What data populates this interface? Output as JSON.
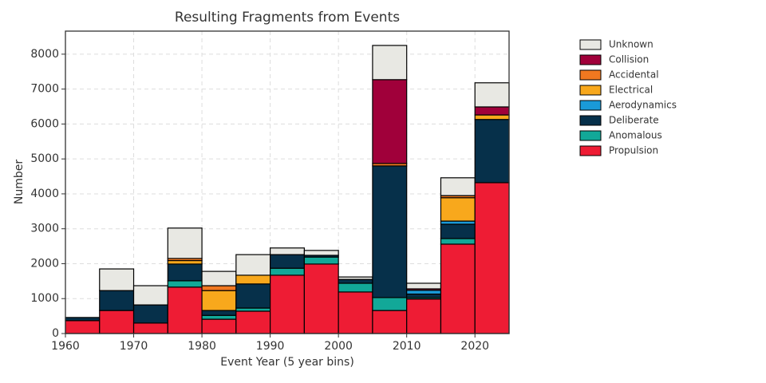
{
  "chart_data": {
    "type": "histogram",
    "title": "Resulting Fragments from Events",
    "xlabel": "Event Year (5 year bins)",
    "ylabel": "Number",
    "bins": [
      1960,
      1965,
      1970,
      1975,
      1980,
      1985,
      1990,
      1995,
      2000,
      2005,
      2010,
      2015,
      2020,
      2025
    ],
    "stacked": true,
    "series": [
      {
        "name": "Propulsion",
        "color": "#ee1c34",
        "values": [
          370,
          660,
          300,
          1330,
          410,
          640,
          1670,
          1990,
          1190,
          660,
          990,
          2560,
          4320
        ]
      },
      {
        "name": "Anomalous",
        "color": "#12a898",
        "values": [
          0,
          0,
          0,
          180,
          110,
          90,
          200,
          200,
          250,
          370,
          40,
          160,
          0
        ]
      },
      {
        "name": "Deliberate",
        "color": "#06304a",
        "values": [
          90,
          570,
          520,
          480,
          140,
          690,
          390,
          50,
          110,
          3770,
          100,
          410,
          1810
        ]
      },
      {
        "name": "Aerodynamics",
        "color": "#1a9ad8",
        "values": [
          0,
          0,
          0,
          0,
          0,
          0,
          0,
          0,
          0,
          0,
          110,
          90,
          0
        ]
      },
      {
        "name": "Electrical",
        "color": "#f8a81c",
        "values": [
          0,
          0,
          0,
          100,
          570,
          250,
          0,
          0,
          0,
          0,
          0,
          670,
          130
        ]
      },
      {
        "name": "Accidental",
        "color": "#f07820",
        "values": [
          0,
          0,
          0,
          60,
          140,
          0,
          0,
          0,
          0,
          70,
          0,
          60,
          0
        ]
      },
      {
        "name": "Collision",
        "color": "#a0003a",
        "values": [
          0,
          0,
          0,
          0,
          0,
          0,
          0,
          0,
          0,
          2400,
          40,
          0,
          230
        ]
      },
      {
        "name": "Unknown",
        "color": "#e8e8e3",
        "values": [
          0,
          620,
          550,
          870,
          410,
          590,
          190,
          140,
          70,
          980,
          160,
          510,
          690
        ]
      }
    ],
    "xlim": [
      1960,
      2025
    ],
    "xticks": [
      1960,
      1970,
      1980,
      1990,
      2000,
      2010,
      2020
    ],
    "ylim": [
      0,
      8660
    ],
    "yticks": [
      0,
      1000,
      2000,
      3000,
      4000,
      5000,
      6000,
      7000,
      8000
    ],
    "grid": true,
    "legend": "outside-upper-right"
  }
}
